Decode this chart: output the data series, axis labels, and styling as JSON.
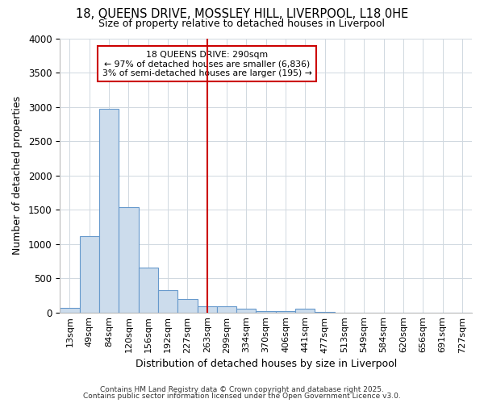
{
  "title": "18, QUEENS DRIVE, MOSSLEY HILL, LIVERPOOL, L18 0HE",
  "subtitle": "Size of property relative to detached houses in Liverpool",
  "xlabel": "Distribution of detached houses by size in Liverpool",
  "ylabel": "Number of detached properties",
  "bar_color": "#ccdcec",
  "bar_edge_color": "#6699cc",
  "bin_labels": [
    "13sqm",
    "49sqm",
    "84sqm",
    "120sqm",
    "156sqm",
    "192sqm",
    "227sqm",
    "263sqm",
    "299sqm",
    "334sqm",
    "370sqm",
    "406sqm",
    "441sqm",
    "477sqm",
    "513sqm",
    "549sqm",
    "584sqm",
    "620sqm",
    "656sqm",
    "691sqm",
    "727sqm"
  ],
  "bar_heights": [
    65,
    1110,
    2970,
    1530,
    650,
    330,
    195,
    90,
    90,
    50,
    20,
    20,
    50,
    10,
    0,
    0,
    0,
    0,
    0,
    0,
    0
  ],
  "vline_x": 7,
  "vline_color": "#cc0000",
  "annotation_title": "18 QUEENS DRIVE: 290sqm",
  "annotation_line1": "← 97% of detached houses are smaller (6,836)",
  "annotation_line2": "3% of semi-detached houses are larger (195) →",
  "annotation_box_color": "#cc0000",
  "ylim": [
    0,
    4000
  ],
  "yticks": [
    0,
    500,
    1000,
    1500,
    2000,
    2500,
    3000,
    3500,
    4000
  ],
  "footer1": "Contains HM Land Registry data © Crown copyright and database right 2025.",
  "footer2": "Contains public sector information licensed under the Open Government Licence v3.0.",
  "background_color": "#ffffff",
  "plot_background": "#ffffff",
  "grid_color": "#d0d8e0"
}
